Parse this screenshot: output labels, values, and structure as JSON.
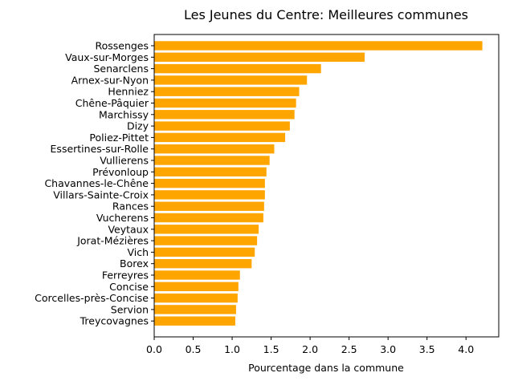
{
  "chart_data": {
    "type": "bar",
    "orientation": "horizontal",
    "title": "Les Jeunes du Centre: Meilleures communes",
    "xlabel": "Pourcentage dans la commune",
    "ylabel": "",
    "xlim": [
      0,
      4.42
    ],
    "xticks": [
      "0.0",
      "0.5",
      "1.0",
      "1.5",
      "2.0",
      "2.5",
      "3.0",
      "3.5",
      "4.0"
    ],
    "bar_color": "#ffa500",
    "categories": [
      "Rossenges",
      "Vaux-sur-Morges",
      "Senarclens",
      "Arnex-sur-Nyon",
      "Henniez",
      "Chêne-Pâquier",
      "Marchissy",
      "Dizy",
      "Poliez-Pittet",
      "Essertines-sur-Rolle",
      "Vullierens",
      "Prévonloup",
      "Chavannes-le-Chêne",
      "Villars-Sainte-Croix",
      "Rances",
      "Vucherens",
      "Veytaux",
      "Jorat-Mézières",
      "Vich",
      "Borex",
      "Ferreyres",
      "Concise",
      "Corcelles-près-Concise",
      "Servion",
      "Treycovagnes"
    ],
    "values": [
      4.21,
      2.7,
      2.14,
      1.96,
      1.86,
      1.82,
      1.8,
      1.74,
      1.68,
      1.54,
      1.48,
      1.44,
      1.42,
      1.42,
      1.41,
      1.4,
      1.34,
      1.32,
      1.29,
      1.25,
      1.1,
      1.08,
      1.07,
      1.05,
      1.04
    ],
    "grid": false,
    "legend": "none"
  }
}
